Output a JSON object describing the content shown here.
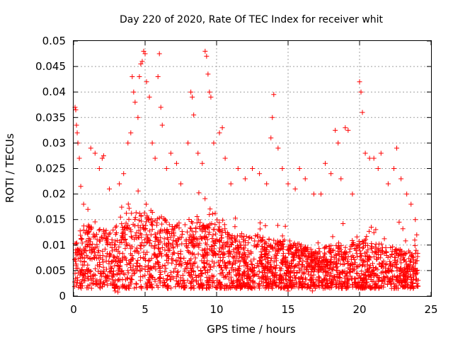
{
  "chart_data": {
    "type": "scatter",
    "title": "Day 220 of 2020, Rate Of TEC Index for receiver whit",
    "xlabel": "GPS time / hours",
    "ylabel": "ROTI / TECUs",
    "xlim": [
      0,
      25
    ],
    "ylim": [
      0,
      0.05
    ],
    "x_ticks": [
      0,
      5,
      10,
      15,
      20,
      25
    ],
    "x_tick_labels": [
      "0",
      "5",
      "10",
      "15",
      "20",
      "25"
    ],
    "y_ticks": [
      0,
      0.005,
      0.01,
      0.015,
      0.02,
      0.025,
      0.03,
      0.035,
      0.04,
      0.045,
      0.05
    ],
    "y_tick_labels": [
      "0",
      "0.005",
      "0.01",
      "0.015",
      "0.02",
      "0.025",
      "0.03",
      "0.035",
      "0.04",
      "0.045",
      "0.05"
    ],
    "grid": true,
    "marker": "+",
    "marker_color": "#ff0000",
    "series": [
      {
        "points": [
          [
            0.1,
            0.037
          ],
          [
            0.15,
            0.0365
          ],
          [
            0.2,
            0.0335
          ],
          [
            0.25,
            0.032
          ],
          [
            0.3,
            0.03
          ],
          [
            0.4,
            0.027
          ],
          [
            0.5,
            0.0215
          ],
          [
            0.7,
            0.018
          ],
          [
            1.0,
            0.017
          ],
          [
            1.2,
            0.029
          ],
          [
            1.5,
            0.028
          ],
          [
            1.8,
            0.025
          ],
          [
            2.0,
            0.027
          ],
          [
            2.1,
            0.0275
          ],
          [
            2.5,
            0.021
          ],
          [
            2.9,
            0.001
          ],
          [
            3.2,
            0.022
          ],
          [
            3.5,
            0.024
          ],
          [
            3.8,
            0.03
          ],
          [
            4.0,
            0.032
          ],
          [
            4.1,
            0.043
          ],
          [
            4.2,
            0.04
          ],
          [
            4.3,
            0.038
          ],
          [
            4.5,
            0.035
          ],
          [
            4.6,
            0.043
          ],
          [
            4.7,
            0.0455
          ],
          [
            4.8,
            0.046
          ],
          [
            4.9,
            0.048
          ],
          [
            5.0,
            0.0475
          ],
          [
            5.1,
            0.042
          ],
          [
            5.3,
            0.039
          ],
          [
            5.5,
            0.03
          ],
          [
            5.7,
            0.027
          ],
          [
            5.9,
            0.043
          ],
          [
            6.0,
            0.0475
          ],
          [
            6.1,
            0.037
          ],
          [
            6.2,
            0.0335
          ],
          [
            6.5,
            0.025
          ],
          [
            6.8,
            0.028
          ],
          [
            7.2,
            0.026
          ],
          [
            7.5,
            0.022
          ],
          [
            8.0,
            0.03
          ],
          [
            8.2,
            0.04
          ],
          [
            8.3,
            0.039
          ],
          [
            8.4,
            0.0355
          ],
          [
            8.7,
            0.028
          ],
          [
            9.0,
            0.026
          ],
          [
            9.2,
            0.048
          ],
          [
            9.3,
            0.047
          ],
          [
            9.4,
            0.0435
          ],
          [
            9.5,
            0.04
          ],
          [
            9.6,
            0.039
          ],
          [
            9.8,
            0.03
          ],
          [
            10.2,
            0.032
          ],
          [
            10.4,
            0.033
          ],
          [
            10.6,
            0.027
          ],
          [
            11.0,
            0.022
          ],
          [
            11.5,
            0.025
          ],
          [
            12.0,
            0.023
          ],
          [
            12.5,
            0.025
          ],
          [
            13.0,
            0.024
          ],
          [
            13.5,
            0.022
          ],
          [
            13.8,
            0.031
          ],
          [
            13.9,
            0.035
          ],
          [
            14.0,
            0.0395
          ],
          [
            14.3,
            0.029
          ],
          [
            14.6,
            0.025
          ],
          [
            15.0,
            0.022
          ],
          [
            15.5,
            0.021
          ],
          [
            15.8,
            0.025
          ],
          [
            16.2,
            0.023
          ],
          [
            16.8,
            0.02
          ],
          [
            17.3,
            0.02
          ],
          [
            17.6,
            0.026
          ],
          [
            18.0,
            0.024
          ],
          [
            18.3,
            0.0325
          ],
          [
            18.5,
            0.03
          ],
          [
            18.7,
            0.023
          ],
          [
            19.0,
            0.033
          ],
          [
            19.2,
            0.0325
          ],
          [
            19.5,
            0.02
          ],
          [
            20.0,
            0.042
          ],
          [
            20.1,
            0.04
          ],
          [
            20.2,
            0.036
          ],
          [
            20.4,
            0.028
          ],
          [
            20.7,
            0.027
          ],
          [
            21.0,
            0.027
          ],
          [
            21.3,
            0.025
          ],
          [
            21.5,
            0.028
          ],
          [
            22.0,
            0.022
          ],
          [
            22.4,
            0.025
          ],
          [
            22.6,
            0.029
          ],
          [
            22.9,
            0.023
          ],
          [
            23.3,
            0.02
          ],
          [
            23.6,
            0.018
          ],
          [
            23.9,
            0.015
          ],
          [
            24.0,
            0.012
          ],
          [
            1.0,
            0.002
          ],
          [
            3.1,
            0.0008
          ],
          [
            5.4,
            0.002
          ],
          [
            8.4,
            0.002
          ],
          [
            11.7,
            0.0025
          ],
          [
            15.0,
            0.001
          ],
          [
            16.7,
            0.001
          ],
          [
            19.8,
            0.002
          ],
          [
            22.7,
            0.0015
          ],
          [
            24.0,
            0.002
          ]
        ]
      }
    ],
    "background_noise": {
      "note": "dense band of + markers across 0-24 h, mostly between ROTI 0.002 and 0.02",
      "x_range": [
        0.05,
        24.1
      ],
      "y_min": 0.0015,
      "hour_profile": [
        0.011,
        0.014,
        0.013,
        0.014,
        0.016,
        0.017,
        0.016,
        0.014,
        0.015,
        0.015,
        0.014,
        0.012,
        0.012,
        0.012,
        0.011,
        0.011,
        0.01,
        0.009,
        0.01,
        0.01,
        0.011,
        0.011,
        0.01,
        0.009,
        0.009
      ],
      "count": 2600
    }
  }
}
